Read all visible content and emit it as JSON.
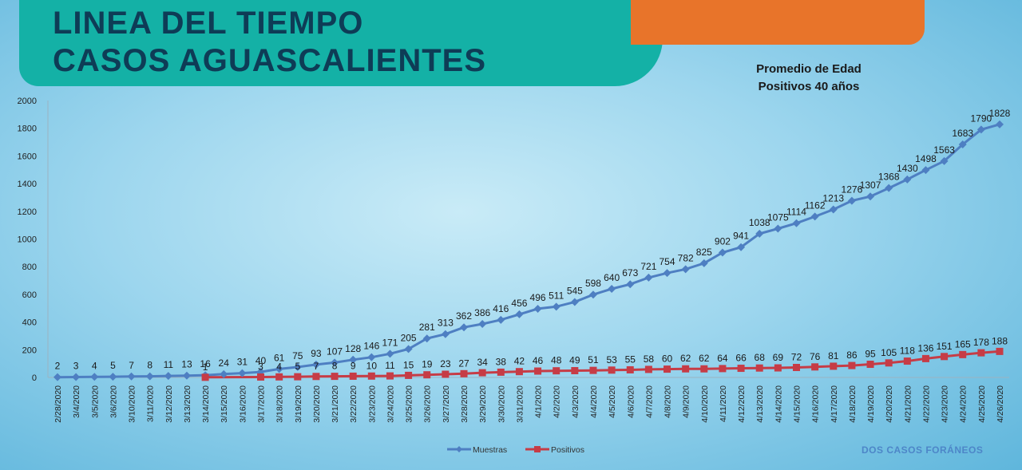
{
  "header": {
    "title_line1": "LINEA DEL TIEMPO",
    "title_line2": "CASOS AGUASCALIENTES"
  },
  "note": {
    "line1": "Promedio de Edad",
    "line2": "Positivos 40 años"
  },
  "footer": "DOS CASOS FORÁNEOS",
  "colors": {
    "title_bg": "#14b1a6",
    "title_text": "#0e3c56",
    "accent_orange": "#e8742a",
    "muestras": "#4e7fc2",
    "positivos": "#c63c46"
  },
  "chart_data": {
    "type": "line",
    "title": "",
    "xlabel": "",
    "ylabel": "",
    "ylim": [
      0,
      2000
    ],
    "yticks": [
      0,
      200,
      400,
      600,
      800,
      1000,
      1200,
      1400,
      1600,
      1800,
      2000
    ],
    "grid": false,
    "legend_position": "bottom-center",
    "categories": [
      "2/28/2020",
      "3/4/2020",
      "3/5/2020",
      "3/6/2020",
      "3/10/2020",
      "3/11/2020",
      "3/12/2020",
      "3/13/2020",
      "3/14/2020",
      "3/15/2020",
      "3/16/2020",
      "3/17/2020",
      "3/18/2020",
      "3/19/2020",
      "3/20/2020",
      "3/21/2020",
      "3/22/2020",
      "3/23/2020",
      "3/24/2020",
      "3/25/2020",
      "3/26/2020",
      "3/27/2020",
      "3/28/2020",
      "3/29/2020",
      "3/30/2020",
      "3/31/2020",
      "4/1/2020",
      "4/2/2020",
      "4/3/2020",
      "4/4/2020",
      "4/5/2020",
      "4/6/2020",
      "4/7/2020",
      "4/8/2020",
      "4/9/2020",
      "4/10/2020",
      "4/11/2020",
      "4/12/2020",
      "4/13/2020",
      "4/14/2020",
      "4/15/2020",
      "4/16/2020",
      "4/17/2020",
      "4/18/2020",
      "4/19/2020",
      "4/20/2020",
      "4/21/2020",
      "4/22/2020",
      "4/23/2020",
      "4/24/2020",
      "4/25/2020",
      "4/26/2020"
    ],
    "series": [
      {
        "name": "Muestras",
        "color": "#4e7fc2",
        "marker": "diamond",
        "values": [
          2,
          3,
          4,
          5,
          7,
          8,
          11,
          13,
          16,
          24,
          31,
          40,
          61,
          75,
          93,
          107,
          128,
          146,
          171,
          205,
          281,
          313,
          362,
          386,
          416,
          456,
          496,
          511,
          545,
          598,
          640,
          673,
          721,
          754,
          782,
          825,
          902,
          941,
          1038,
          1075,
          1114,
          1162,
          1213,
          1276,
          1307,
          1368,
          1430,
          1498,
          1563,
          1683,
          1790,
          1828
        ]
      },
      {
        "name": "Positivos",
        "color": "#c63c46",
        "marker": "square",
        "values": [
          null,
          null,
          null,
          null,
          null,
          null,
          null,
          null,
          1,
          null,
          null,
          3,
          4,
          5,
          7,
          8,
          9,
          10,
          11,
          15,
          19,
          23,
          27,
          34,
          38,
          42,
          46,
          48,
          49,
          51,
          53,
          55,
          58,
          60,
          62,
          62,
          64,
          66,
          68,
          69,
          72,
          76,
          81,
          86,
          95,
          105,
          118,
          136,
          151,
          165,
          178,
          188
        ]
      }
    ]
  }
}
